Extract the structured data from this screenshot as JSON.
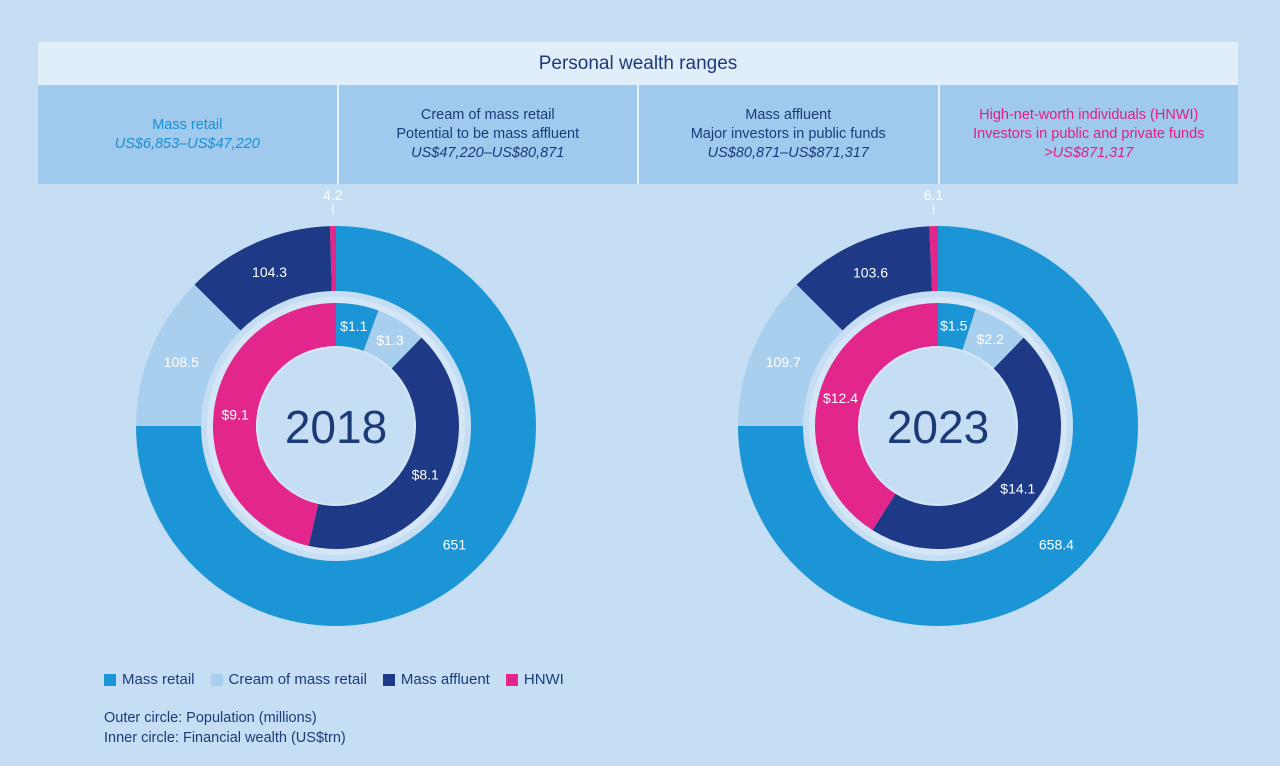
{
  "header": {
    "title": "Personal wealth ranges"
  },
  "ranges": [
    {
      "key": "mass_retail",
      "lines": [
        "Mass retail"
      ],
      "amount": "US$6,853–US$47,220",
      "color_class": "c-blue"
    },
    {
      "key": "cream",
      "lines": [
        "Cream of mass retail",
        "Potential to be mass affluent"
      ],
      "amount": "US$47,220–US$80,871",
      "color_class": "c-navy"
    },
    {
      "key": "affluent",
      "lines": [
        "Mass affluent",
        "Major investors in public funds"
      ],
      "amount": "US$80,871–US$871,317",
      "color_class": "c-navy"
    },
    {
      "key": "hnwi",
      "lines": [
        "High-net-worth individuals (HNWI)",
        "Investors in public and private funds"
      ],
      "amount": ">US$871,317",
      "color_class": "c-pink"
    }
  ],
  "colors": {
    "mass_retail": "#1b95d6",
    "cream": "#a9cfee",
    "affluent": "#1e3a87",
    "hnwi": "#e2268c",
    "background": "#c6def3",
    "center": "#c6def3"
  },
  "chart_data": [
    {
      "type": "pie",
      "title": "2018",
      "categories": [
        "Mass retail",
        "Cream of mass retail",
        "Mass affluent",
        "HNWI"
      ],
      "series": [
        {
          "name": "Outer circle: Population (millions)",
          "values": [
            651,
            108.5,
            104.3,
            4.2
          ],
          "labels": [
            "651",
            "108.5",
            "104.3",
            "4.2"
          ]
        },
        {
          "name": "Inner circle: Financial wealth (US$trn)",
          "values": [
            1.1,
            1.3,
            8.1,
            9.1
          ],
          "labels": [
            "$1.1",
            "$1.3",
            "$8.1",
            "$9.1"
          ]
        }
      ]
    },
    {
      "type": "pie",
      "title": "2023",
      "categories": [
        "Mass retail",
        "Cream of mass retail",
        "Mass affluent",
        "HNWI"
      ],
      "series": [
        {
          "name": "Outer circle: Population (millions)",
          "values": [
            658.4,
            109.7,
            103.6,
            6.1
          ],
          "labels": [
            "658.4",
            "109.7",
            "103.6",
            "6.1"
          ]
        },
        {
          "name": "Inner circle: Financial wealth (US$trn)",
          "values": [
            1.5,
            2.2,
            14.1,
            12.4
          ],
          "labels": [
            "$1.5",
            "$2.2",
            "$14.1",
            "$12.4"
          ]
        }
      ]
    }
  ],
  "legend": {
    "items": [
      {
        "label": "Mass retail",
        "color": "#1b95d6"
      },
      {
        "label": "Cream of mass retail",
        "color": "#a9cfee"
      },
      {
        "label": "Mass affluent",
        "color": "#1e3a87"
      },
      {
        "label": "HNWI",
        "color": "#e2268c"
      }
    ]
  },
  "notes": {
    "outer": "Outer circle: Population (millions)",
    "inner": "Inner circle: Financial wealth (US$trn)"
  }
}
